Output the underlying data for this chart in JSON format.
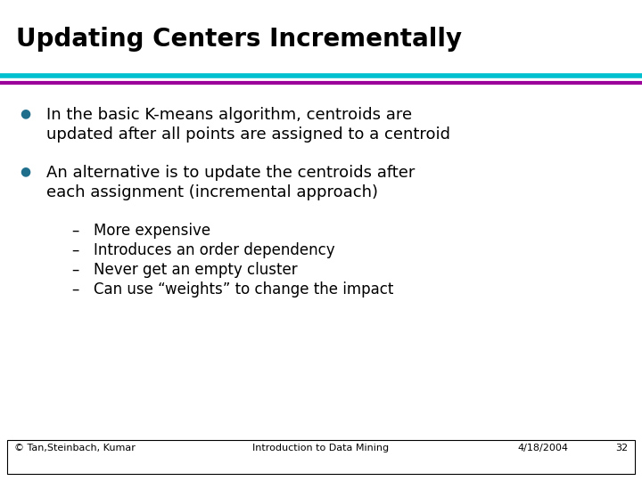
{
  "title": "Updating Centers Incrementally",
  "title_fontsize": 20,
  "title_fontweight": "bold",
  "title_color": "#000000",
  "bg_color": "#ffffff",
  "line1_color": "#00BFCF",
  "line2_color": "#9B009B",
  "bullet_color": "#1E6E8C",
  "bullet1_text_line1": "In the basic K-means algorithm, centroids are",
  "bullet1_text_line2": "updated after all points are assigned to a centroid",
  "bullet2_text_line1": "An alternative is to update the centroids after",
  "bullet2_text_line2": "each assignment (incremental approach)",
  "sub_bullets": [
    "More expensive",
    "Introduces an order dependency",
    "Never get an empty cluster",
    "Can use “weights” to change the impact"
  ],
  "footer_left": "© Tan,Steinbach, Kumar",
  "footer_center": "Introduction to Data Mining",
  "footer_right": "4/18/2004",
  "footer_page": "32",
  "body_fontsize": 13,
  "sub_fontsize": 12,
  "footer_fontsize": 8
}
